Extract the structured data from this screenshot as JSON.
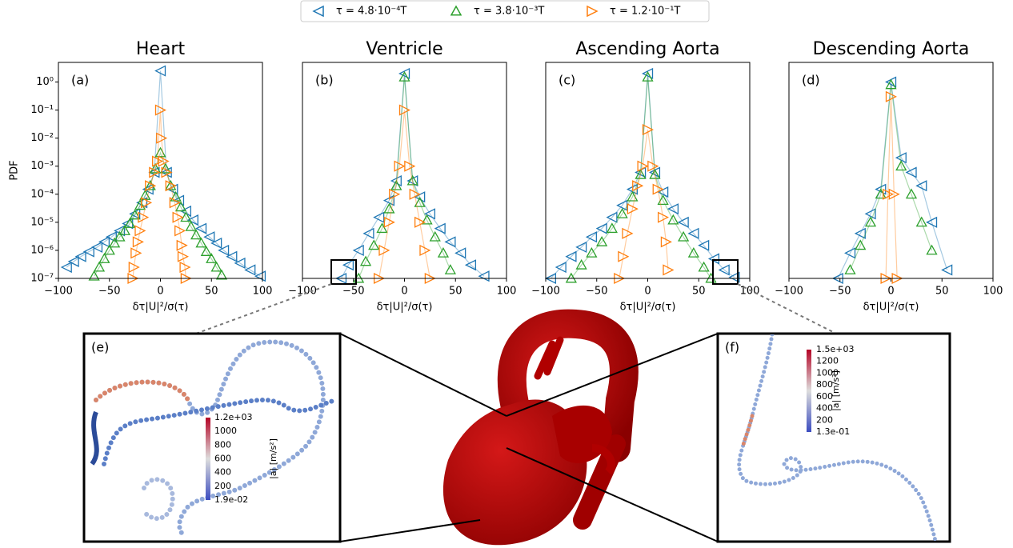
{
  "legend": [
    {
      "name": "τ = 4.8·10⁻⁴T",
      "color": "#1f77b4",
      "marker": "left"
    },
    {
      "name": "τ = 3.8·10⁻³T",
      "color": "#2ca02c",
      "marker": "up"
    },
    {
      "name": "τ = 1.2·10⁻¹T",
      "color": "#ff7f0e",
      "marker": "right"
    }
  ],
  "chart_data": [
    {
      "type": "line",
      "title": "Heart",
      "panel_label": "(a)",
      "x_label": "δτ|U|²/σ(τ)",
      "y_label": "PDF",
      "log_y": true,
      "xlim": [
        -100,
        100
      ],
      "xticks": [
        {
          "value": -100,
          "label": "−100"
        },
        {
          "value": -50,
          "label": "−50"
        },
        0,
        50,
        100
      ],
      "ylim": [
        1e-07,
        5
      ],
      "yticks": [
        {
          "value": 1,
          "label": "10⁰"
        },
        {
          "value": 0.1,
          "label": "10⁻¹"
        },
        {
          "value": 0.01,
          "label": "10⁻²"
        },
        {
          "value": 0.001,
          "label": "10⁻³"
        },
        {
          "value": 0.0001,
          "label": "10⁻⁴"
        },
        {
          "value": 1e-05,
          "label": "10⁻⁵"
        },
        {
          "value": 1e-06,
          "label": "10⁻⁶"
        },
        {
          "value": 1e-07,
          "label": "10⁻⁷"
        }
      ],
      "series": [
        {
          "x": [
            -92,
            -85,
            -78,
            -70,
            -62,
            -55,
            -48,
            -40,
            -32,
            -25,
            -18,
            -12,
            -6,
            0,
            6,
            12,
            18,
            25,
            32,
            40,
            48,
            55,
            62,
            70,
            78,
            88,
            98
          ],
          "values": [
            2.5e-07,
            4e-07,
            6e-07,
            9e-07,
            1.3e-06,
            2e-06,
            3e-06,
            5e-06,
            9e-06,
            2e-05,
            5e-05,
            0.00015,
            0.0006,
            2.5,
            0.0006,
            0.00015,
            6e-05,
            2.5e-05,
            1.2e-05,
            6e-06,
            3e-06,
            1.8e-06,
            1e-06,
            6e-07,
            3.5e-07,
            2e-07,
            1.2e-07
          ]
        },
        {
          "x": [
            -65,
            -60,
            -55,
            -50,
            -45,
            -40,
            -35,
            -30,
            -25,
            -20,
            -15,
            -10,
            -5,
            0,
            5,
            10,
            15,
            20,
            25,
            30,
            35,
            40,
            45,
            50,
            55,
            60
          ],
          "values": [
            1.2e-07,
            2.5e-07,
            5e-07,
            1e-06,
            1.8e-06,
            3e-06,
            5e-06,
            9e-06,
            1.8e-05,
            4e-05,
            9e-05,
            0.0002,
            0.0008,
            0.003,
            0.0008,
            0.0002,
            8e-05,
            3.5e-05,
            1.5e-05,
            7e-06,
            3.5e-06,
            1.8e-06,
            9e-07,
            5e-07,
            2.5e-07,
            1.3e-07
          ]
        },
        {
          "x": [
            -27,
            -26,
            -24,
            -22,
            -20,
            -17,
            -14,
            -10,
            -6,
            -3,
            0,
            1,
            3,
            6,
            10,
            14,
            17,
            19,
            21,
            22,
            24,
            25
          ],
          "values": [
            1e-07,
            2.5e-07,
            8e-07,
            2e-06,
            5e-06,
            1.5e-05,
            5e-05,
            0.0002,
            0.0006,
            0.0015,
            0.1,
            0.01,
            0.0015,
            0.0006,
            0.0002,
            5e-05,
            1.5e-05,
            5e-06,
            1.5e-06,
            6e-07,
            2.5e-07,
            1e-07
          ]
        }
      ]
    },
    {
      "type": "line",
      "title": "Ventricle",
      "panel_label": "(b)",
      "x_label": "δτ|U|²/σ(τ)",
      "log_y": true,
      "xlim": [
        -100,
        100
      ],
      "xticks": [
        {
          "value": -100,
          "label": "−100"
        },
        {
          "value": -50,
          "label": "−50"
        },
        0,
        50,
        100
      ],
      "ylim": [
        1e-07,
        5
      ],
      "series": [
        {
          "x": [
            -62,
            -55,
            -45,
            -35,
            -25,
            -15,
            -8,
            0,
            8,
            15,
            25,
            35,
            45,
            55,
            65,
            78
          ],
          "values": [
            1e-07,
            3e-07,
            1e-06,
            4e-06,
            1.5e-05,
            6e-05,
            0.0003,
            2,
            0.0003,
            8e-05,
            2e-05,
            6e-06,
            2e-06,
            8e-07,
            3e-07,
            1.2e-07
          ]
        },
        {
          "x": [
            -45,
            -38,
            -30,
            -22,
            -15,
            -8,
            0,
            8,
            15,
            22,
            30,
            38,
            45
          ],
          "values": [
            1e-07,
            4e-07,
            1.5e-06,
            6e-06,
            3e-05,
            0.0002,
            1.5,
            0.0003,
            5e-05,
            1.2e-05,
            3e-06,
            8e-07,
            2e-07
          ]
        },
        {
          "x": [
            -25,
            -20,
            -15,
            -10,
            -5,
            0,
            5,
            10,
            15,
            20,
            25
          ],
          "values": [
            1e-07,
            1e-06,
            1e-05,
            0.0001,
            0.001,
            0.1,
            0.001,
            0.0001,
            1e-05,
            1e-06,
            1e-07
          ]
        }
      ]
    },
    {
      "type": "line",
      "title": "Ascending Aorta",
      "panel_label": "(c)",
      "x_label": "δτ|U|²/σ(τ)",
      "log_y": true,
      "xlim": [
        -100,
        100
      ],
      "xticks": [
        {
          "value": -100,
          "label": "−100"
        },
        {
          "value": -50,
          "label": "−50"
        },
        0,
        50,
        100
      ],
      "ylim": [
        1e-07,
        5
      ],
      "series": [
        {
          "x": [
            -95,
            -85,
            -75,
            -65,
            -55,
            -45,
            -35,
            -25,
            -15,
            -7,
            0,
            7,
            15,
            25,
            35,
            45,
            55,
            65,
            75,
            85
          ],
          "values": [
            1e-07,
            2.5e-07,
            6e-07,
            1.3e-06,
            3e-06,
            6e-06,
            1.5e-05,
            4e-05,
            0.00015,
            0.0006,
            2,
            0.0006,
            0.00012,
            3e-05,
            1e-05,
            4e-06,
            1.5e-06,
            5e-07,
            2e-07,
            1.1e-07
          ]
        },
        {
          "x": [
            -75,
            -65,
            -55,
            -45,
            -35,
            -25,
            -15,
            -7,
            0,
            7,
            15,
            25,
            35,
            45,
            55,
            62
          ],
          "values": [
            1e-07,
            3e-07,
            8e-07,
            2e-06,
            6e-06,
            2e-05,
            8e-05,
            0.0005,
            1.5,
            0.0005,
            6e-05,
            1.2e-05,
            3e-06,
            8e-07,
            2.5e-07,
            1e-07
          ]
        },
        {
          "x": [
            -28,
            -24,
            -20,
            -15,
            -10,
            -5,
            0,
            5,
            10,
            15,
            18,
            20
          ],
          "values": [
            1e-07,
            6e-07,
            4e-06,
            3e-05,
            0.0002,
            0.001,
            0.02,
            0.001,
            0.00015,
            1.5e-05,
            2e-06,
            2e-07
          ]
        }
      ]
    },
    {
      "type": "line",
      "title": "Descending Aorta",
      "panel_label": "(d)",
      "x_label": "δτ|U|²/σ(τ)",
      "log_y": true,
      "xlim": [
        -100,
        100
      ],
      "xticks": [
        {
          "value": -100,
          "label": "−100"
        },
        {
          "value": -50,
          "label": "−50"
        },
        0,
        50,
        100
      ],
      "ylim": [
        1e-07,
        5
      ],
      "series": [
        {
          "x": [
            -52,
            -40,
            -30,
            -20,
            -10,
            0,
            10,
            20,
            30,
            40,
            55
          ],
          "values": [
            1e-07,
            8e-07,
            4e-06,
            2e-05,
            0.00015,
            1,
            0.002,
            0.0006,
            0.0002,
            1e-05,
            2e-07
          ]
        },
        {
          "x": [
            -40,
            -30,
            -20,
            -10,
            0,
            10,
            20,
            30,
            40
          ],
          "values": [
            2e-07,
            1.5e-06,
            1e-05,
            0.0001,
            0.8,
            0.001,
            0.0001,
            1e-05,
            1e-06
          ]
        },
        {
          "x": [
            -5,
            -3,
            0,
            3,
            6
          ],
          "values": [
            1e-07,
            0.0001,
            0.3,
            0.0001,
            1e-07
          ]
        }
      ]
    }
  ],
  "insets": [
    {
      "label": "(e)",
      "colorbar": {
        "title": "|a| [m/s²]",
        "labels": [
          "1.2e+03",
          "1000",
          "800",
          "600",
          "400",
          "200",
          "1.9e-02"
        ]
      }
    },
    {
      "label": "(f)",
      "colorbar": {
        "title": "|a| [m/s²]",
        "labels": [
          "1.5e+03",
          "1200",
          "1000",
          "800",
          "600",
          "400",
          "200",
          "1.3e-01"
        ]
      }
    }
  ]
}
